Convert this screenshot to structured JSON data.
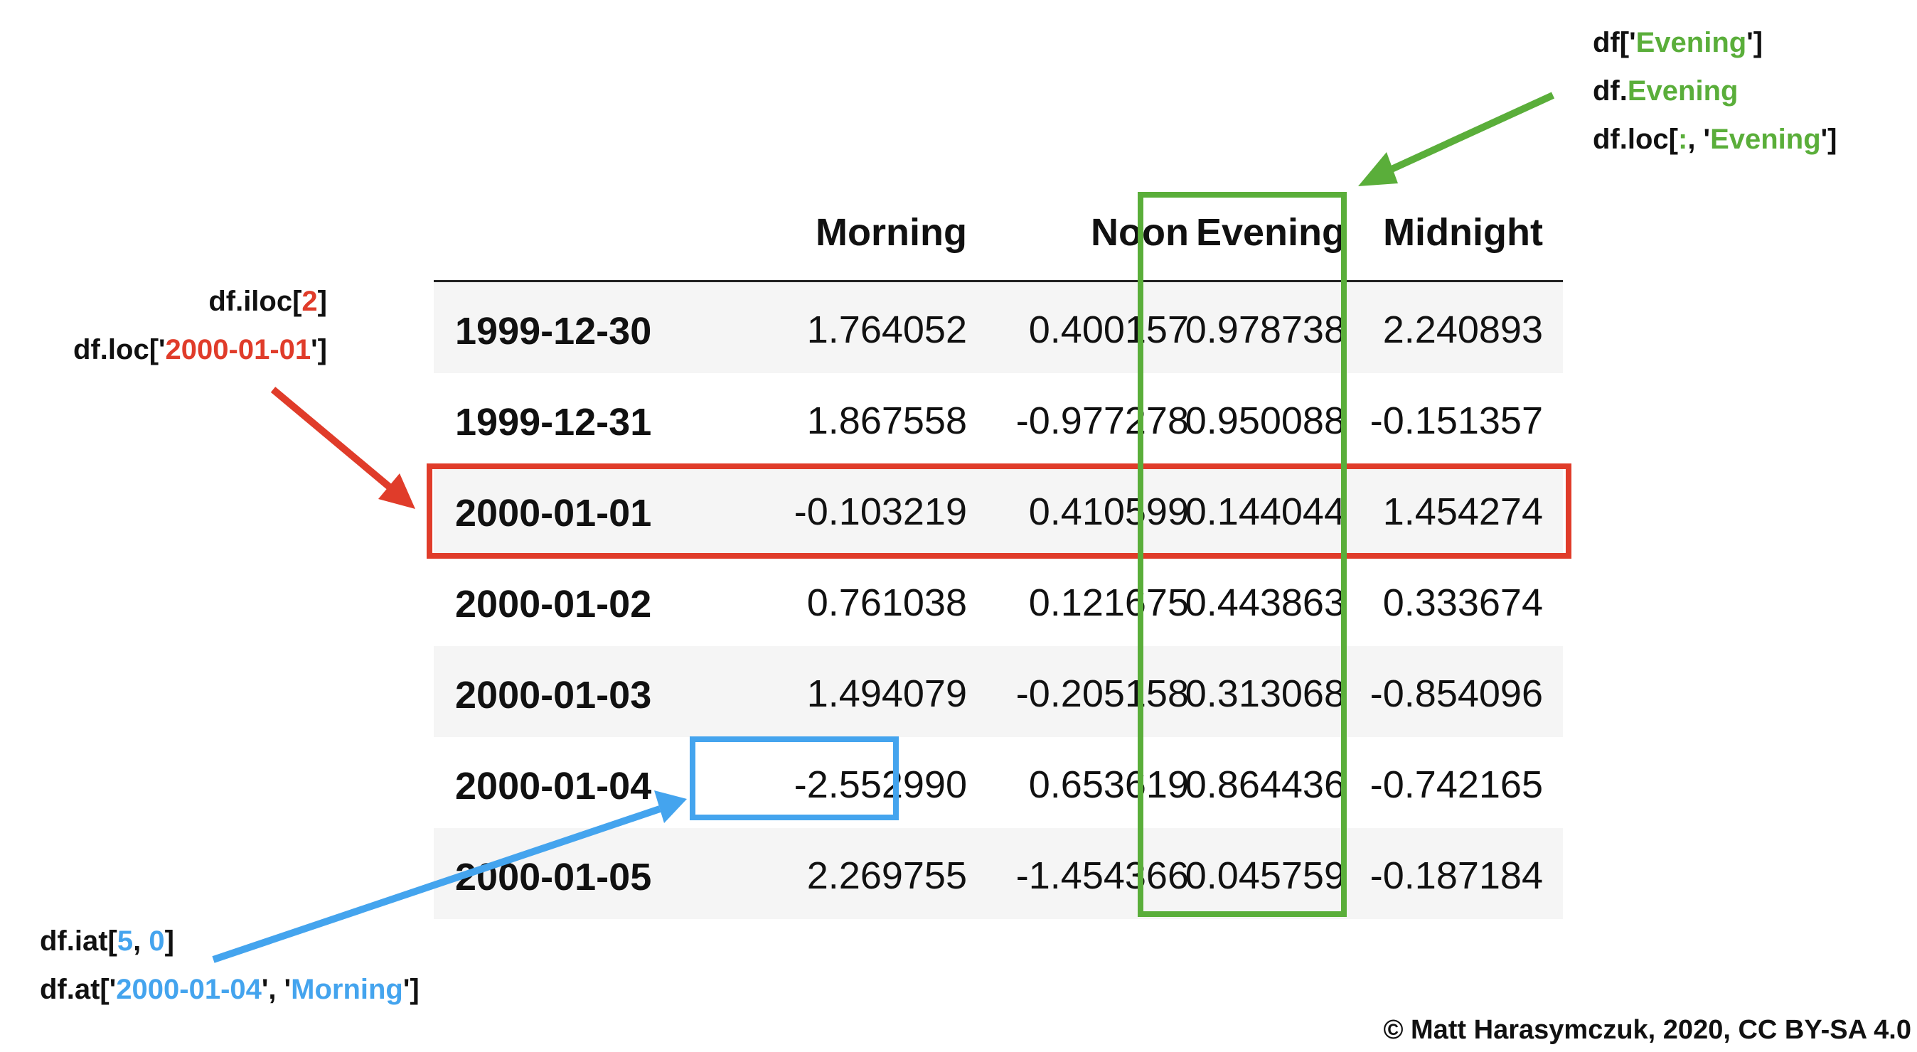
{
  "table": {
    "columns": [
      "Morning",
      "Noon",
      "Evening",
      "Midnight"
    ],
    "rows": [
      {
        "index": "1999-12-30",
        "values": [
          "1.764052",
          "0.400157",
          "0.978738",
          "2.240893"
        ]
      },
      {
        "index": "1999-12-31",
        "values": [
          "1.867558",
          "-0.977278",
          "0.950088",
          "-0.151357"
        ]
      },
      {
        "index": "2000-01-01",
        "values": [
          "-0.103219",
          "0.410599",
          "0.144044",
          "1.454274"
        ]
      },
      {
        "index": "2000-01-02",
        "values": [
          "0.761038",
          "0.121675",
          "0.443863",
          "0.333674"
        ]
      },
      {
        "index": "2000-01-03",
        "values": [
          "1.494079",
          "-0.205158",
          "0.313068",
          "-0.854096"
        ]
      },
      {
        "index": "2000-01-04",
        "values": [
          "-2.552990",
          "0.653619",
          "0.864436",
          "-0.742165"
        ]
      },
      {
        "index": "2000-01-05",
        "values": [
          "2.269755",
          "-1.454366",
          "0.045759",
          "-0.187184"
        ]
      }
    ]
  },
  "annotations": {
    "row": {
      "color": "#e03c2a",
      "line1": {
        "pre": "df.iloc[",
        "hl": "2",
        "post": "]"
      },
      "line2": {
        "pre": "df.loc['",
        "hl": "2000-01-01",
        "post": "']"
      }
    },
    "column": {
      "color": "#5aae3a",
      "line1": {
        "pre": "df['",
        "hl": "Evening",
        "post": "']"
      },
      "line2": {
        "pre": "df.",
        "hl": "Evening",
        "post": ""
      },
      "line3": {
        "pre": "df.loc[",
        "hl1": ":",
        "mid": ", '",
        "hl2": "Evening",
        "post": "']"
      }
    },
    "cell": {
      "color": "#44a4ee",
      "line1": {
        "pre": "df.iat[",
        "hl1": "5",
        "mid": ", ",
        "hl2": "0",
        "post": "]"
      },
      "line2": {
        "pre": "df.at['",
        "hl1": "2000-01-04",
        "mid": "', '",
        "hl2": "Morning",
        "post": "']"
      }
    }
  },
  "credit": "© Matt Harasymczuk, 2020, CC BY-SA 4.0"
}
